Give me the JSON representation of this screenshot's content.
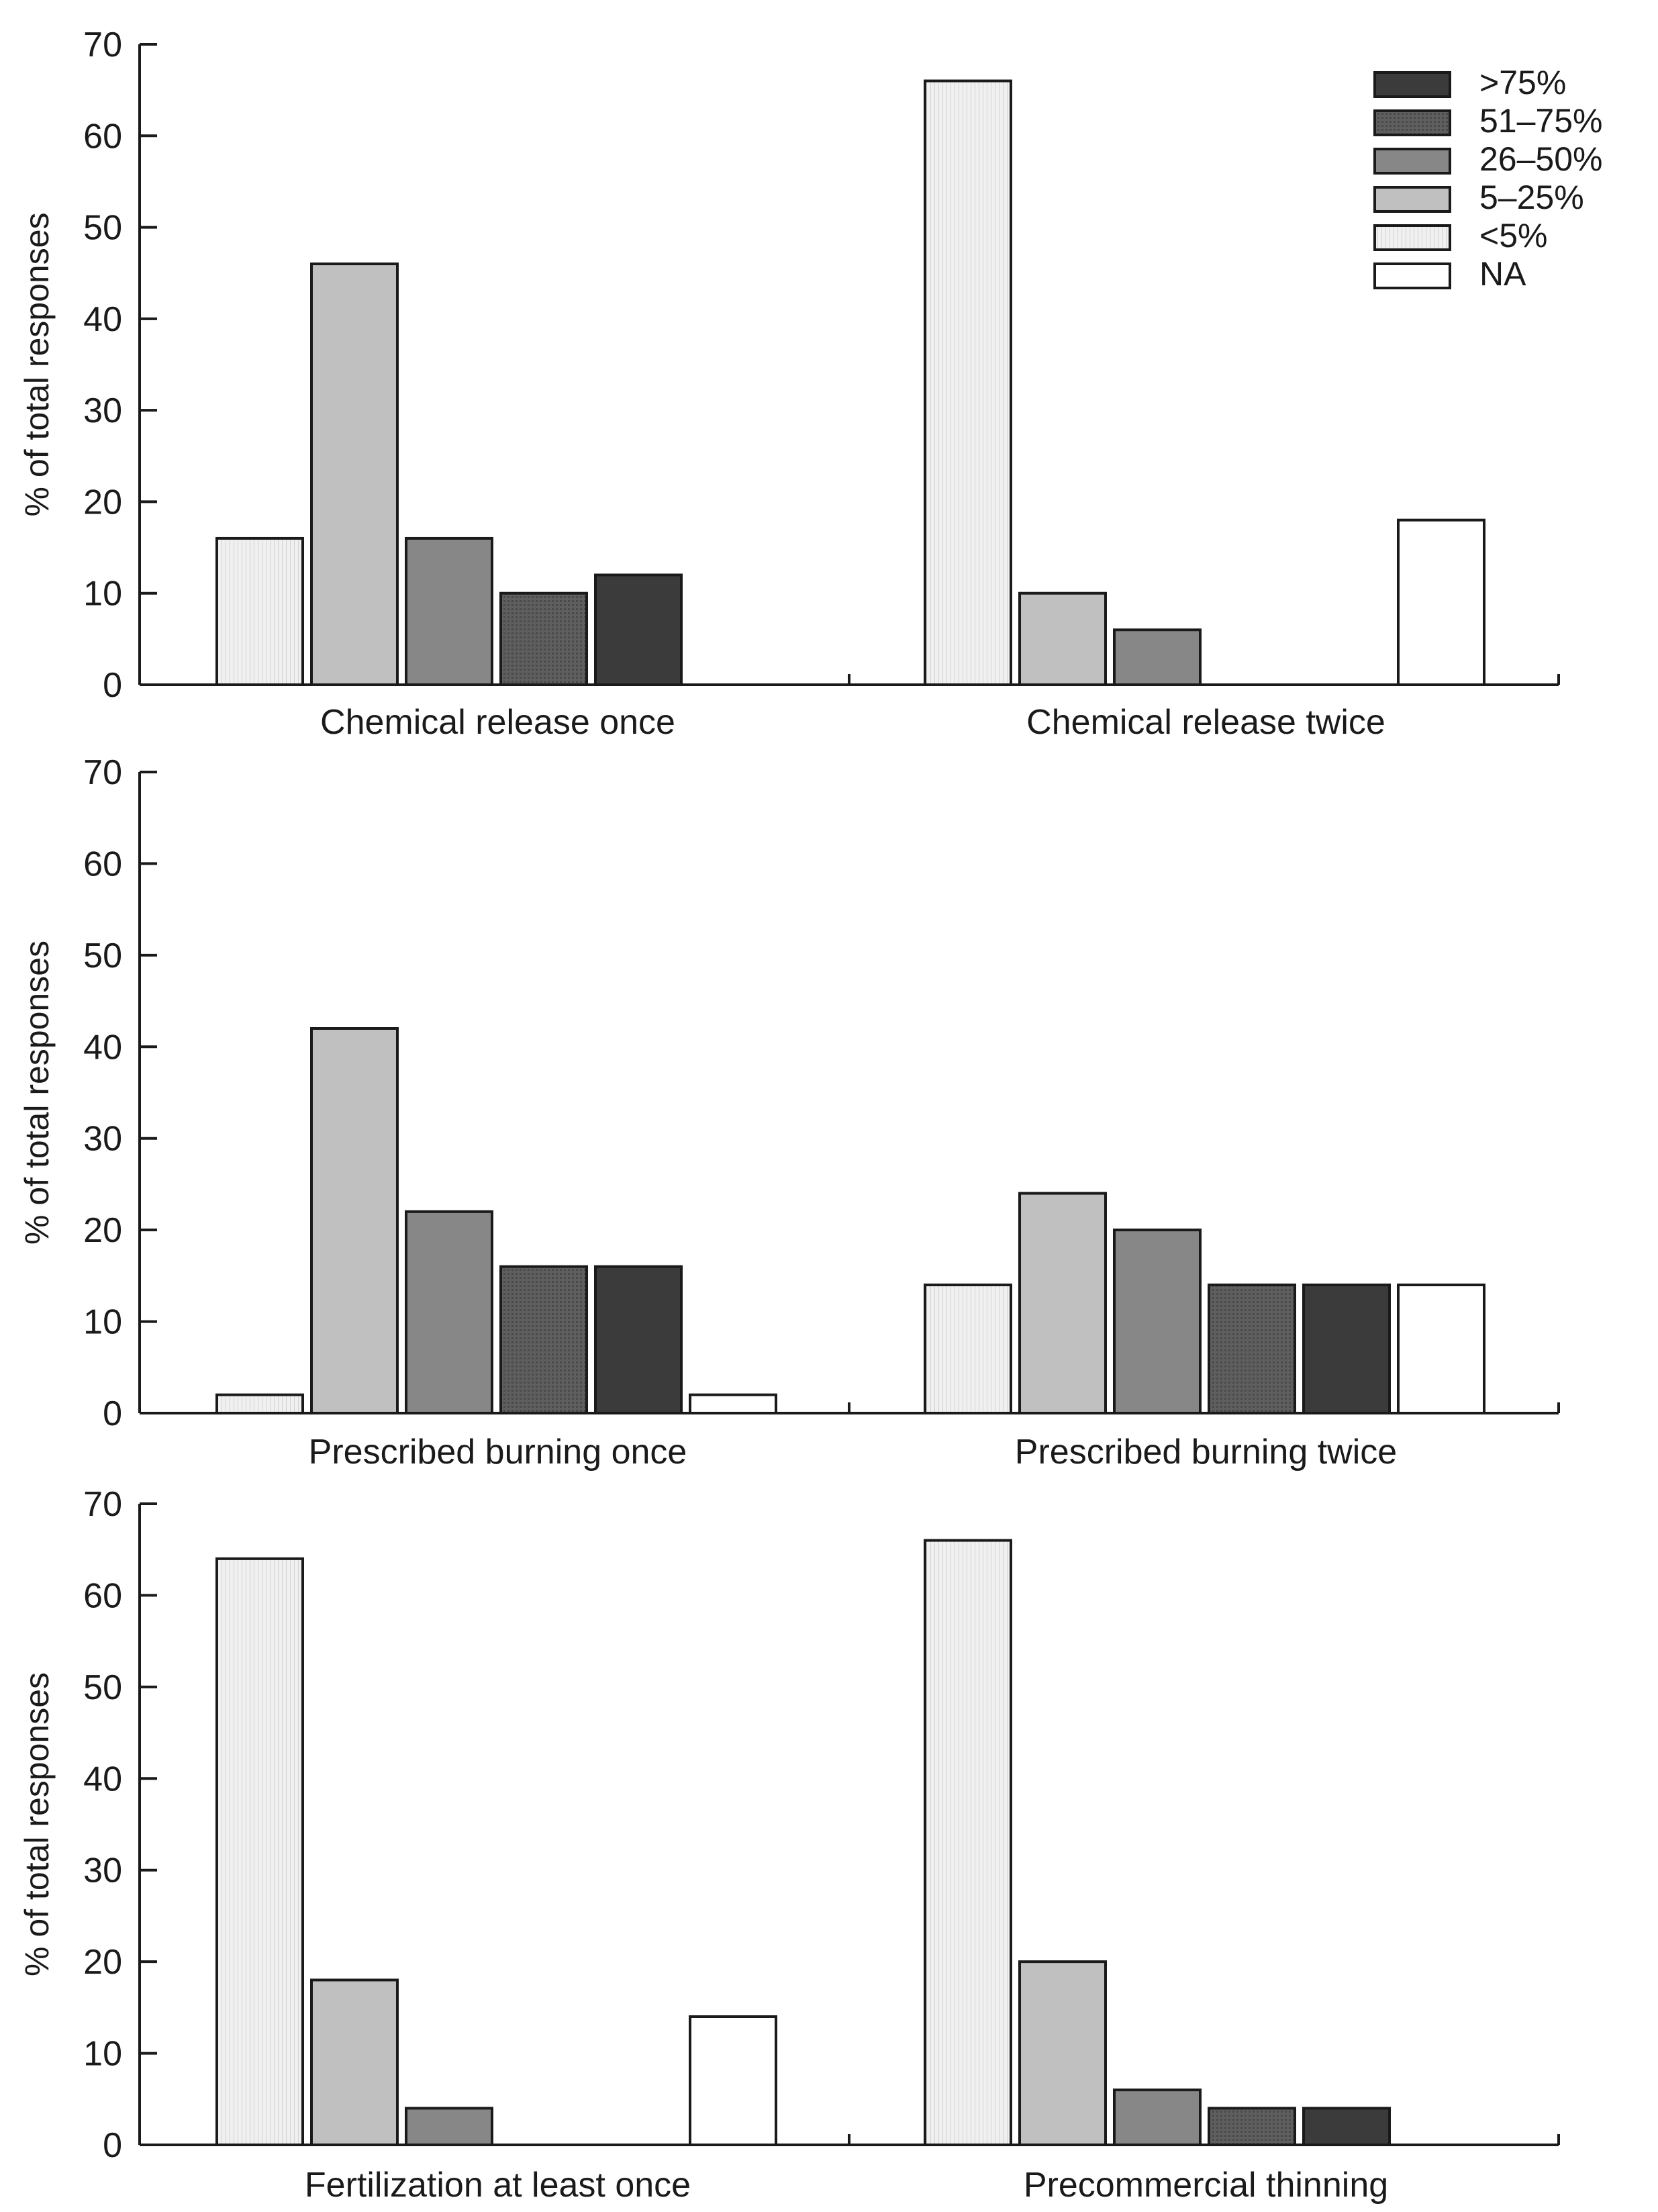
{
  "figure": {
    "legend_title": "",
    "legend": [
      {
        "key": "gt75",
        "label": ">75%",
        "color": "#3b3b3b",
        "pattern": "dark"
      },
      {
        "key": "51_75",
        "label": "51–75%",
        "color": "#5a5a5a",
        "pattern": "dots"
      },
      {
        "key": "26_50",
        "label": "26–50%",
        "color": "#878787",
        "pattern": "medium"
      },
      {
        "key": "5_25",
        "label": "5–25%",
        "color": "#c0c0c0",
        "pattern": "light"
      },
      {
        "key": "lt5",
        "label": "<5%",
        "color": "#ebebeb",
        "pattern": "lines"
      },
      {
        "key": "na",
        "label": "NA",
        "color": "#ffffff",
        "pattern": "none"
      }
    ],
    "series_order": [
      "<5%",
      "5–25%",
      "26–50%",
      "51–75%",
      ">75%",
      "NA"
    ]
  },
  "chart_data": [
    {
      "type": "bar",
      "ylabel": "% of total responses",
      "ylim": [
        0,
        70
      ],
      "yticks": [
        0,
        10,
        20,
        30,
        40,
        50,
        60,
        70
      ],
      "categories": [
        "Chemical release once",
        "Chemical release twice"
      ],
      "series": [
        {
          "name": "<5%",
          "values": [
            16,
            66
          ]
        },
        {
          "name": "5–25%",
          "values": [
            46,
            10
          ]
        },
        {
          "name": "26–50%",
          "values": [
            16,
            6
          ]
        },
        {
          "name": "51–75%",
          "values": [
            10,
            0
          ]
        },
        {
          "name": ">75%",
          "values": [
            12,
            0
          ]
        },
        {
          "name": "NA",
          "values": [
            0,
            18
          ]
        }
      ]
    },
    {
      "type": "bar",
      "ylabel": "% of total responses",
      "ylim": [
        0,
        70
      ],
      "yticks": [
        0,
        10,
        20,
        30,
        40,
        50,
        60,
        70
      ],
      "categories": [
        "Prescribed burning once",
        "Prescribed burning twice"
      ],
      "series": [
        {
          "name": "<5%",
          "values": [
            2,
            14
          ]
        },
        {
          "name": "5–25%",
          "values": [
            42,
            24
          ]
        },
        {
          "name": "26–50%",
          "values": [
            22,
            20
          ]
        },
        {
          "name": "51–75%",
          "values": [
            16,
            14
          ]
        },
        {
          "name": ">75%",
          "values": [
            16,
            14
          ]
        },
        {
          "name": "NA",
          "values": [
            2,
            14
          ]
        }
      ]
    },
    {
      "type": "bar",
      "ylabel": "% of total responses",
      "ylim": [
        0,
        70
      ],
      "yticks": [
        0,
        10,
        20,
        30,
        40,
        50,
        60,
        70
      ],
      "categories": [
        "Fertilization at least once",
        "Precommercial thinning"
      ],
      "series": [
        {
          "name": "<5%",
          "values": [
            64,
            66
          ]
        },
        {
          "name": "5–25%",
          "values": [
            18,
            20
          ]
        },
        {
          "name": "26–50%",
          "values": [
            4,
            6
          ]
        },
        {
          "name": "51–75%",
          "values": [
            0,
            4
          ]
        },
        {
          "name": ">75%",
          "values": [
            0,
            4
          ]
        },
        {
          "name": "NA",
          "values": [
            14,
            0
          ]
        }
      ]
    }
  ]
}
